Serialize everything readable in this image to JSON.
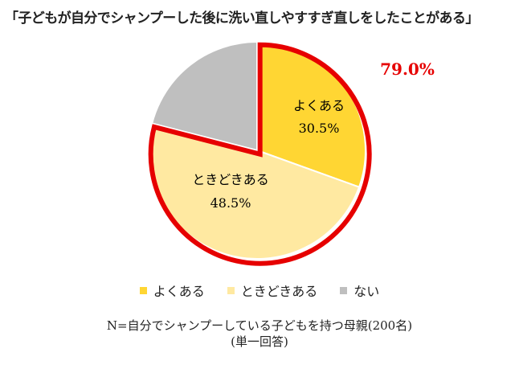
{
  "chart_data": {
    "type": "pie",
    "title": "「子どもが自分でシャンプーした後に洗い直しやすすぎ直しをしたことがある」",
    "slices": [
      {
        "label": "よくある",
        "value": 30.5,
        "display": "30.5%",
        "color": "#FFD633"
      },
      {
        "label": "ときどきある",
        "value": 48.5,
        "display": "48.5%",
        "color": "#FFE9A1"
      },
      {
        "label": "ない",
        "value": 21.0,
        "display": "",
        "color": "#BFBFBF"
      }
    ],
    "highlight": {
      "value": 79.0,
      "display": "79.0%",
      "color": "#E60000"
    },
    "legend_position": "bottom"
  },
  "footnote": {
    "line1": "N=自分でシャンプーしている子どもを持つ母親(200名)",
    "line2": "(単一回答)"
  }
}
